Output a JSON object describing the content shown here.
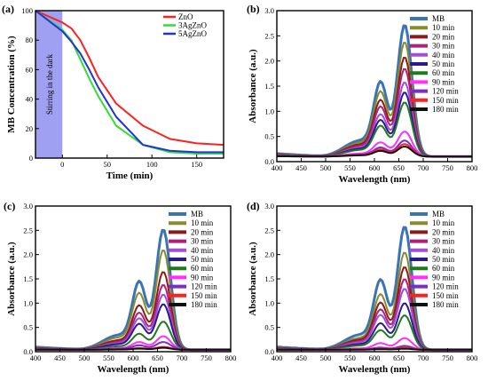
{
  "chart_data": [
    {
      "panel": "(a)",
      "type": "line",
      "xlabel": "Time (min)",
      "ylabel": "MB Concentration (%)",
      "xlim": [
        -30,
        180
      ],
      "ylim": [
        0,
        100
      ],
      "xticks": [
        0,
        50,
        100,
        150
      ],
      "yticks": [
        0,
        20,
        40,
        60,
        80,
        100
      ],
      "annotation": "Stirring in the dark",
      "dark_region": [
        -30,
        0
      ],
      "dark_color": "#8f8ff0",
      "legend_position": "top-right",
      "series": [
        {
          "name": "ZnO",
          "color": "#ff2020",
          "x": [
            -30,
            0,
            10,
            20,
            30,
            40,
            60,
            90,
            120,
            150,
            180
          ],
          "y": [
            100,
            92,
            88,
            80,
            68,
            55,
            37,
            22,
            13,
            10,
            9
          ]
        },
        {
          "name": "3AgZnO",
          "color": "#33dd33",
          "x": [
            -30,
            0,
            10,
            20,
            30,
            40,
            60,
            90,
            120,
            150,
            180
          ],
          "y": [
            100,
            87,
            80,
            67,
            54,
            42,
            22,
            9,
            4,
            3,
            3
          ]
        },
        {
          "name": "5AgZnO",
          "color": "#2233dd",
          "x": [
            -30,
            0,
            10,
            20,
            30,
            40,
            60,
            90,
            120,
            150,
            180
          ],
          "y": [
            100,
            86,
            79,
            71,
            60,
            48,
            28,
            9,
            5,
            4,
            4
          ]
        }
      ]
    },
    {
      "panel": "(b)",
      "type": "line",
      "xlabel": "Wavelength (nm)",
      "ylabel": "Absorbance (a.u.)",
      "xlim": [
        400,
        800
      ],
      "ylim": [
        0,
        3.0
      ],
      "xticks": [
        400,
        450,
        500,
        550,
        600,
        650,
        700,
        750,
        800
      ],
      "yticks": [
        0.0,
        0.5,
        1.0,
        1.5,
        2.0,
        2.5,
        3.0
      ],
      "legend_position": "top-right",
      "base": 0.2,
      "peak_nm": 662,
      "shoulder_nm": 613,
      "series": [
        {
          "name": "MB",
          "color": "#3a74b4",
          "peak": 2.72
        },
        {
          "name": "10 min",
          "color": "#8b8b2a",
          "peak": 2.38
        },
        {
          "name": "20 min",
          "color": "#8b1a1a",
          "peak": 2.08
        },
        {
          "name": "30 min",
          "color": "#b0207a",
          "peak": 1.85
        },
        {
          "name": "40 min",
          "color": "#a050d8",
          "peak": 1.58
        },
        {
          "name": "50 min",
          "color": "#2a1a8a",
          "peak": 1.38
        },
        {
          "name": "60 min",
          "color": "#1f7a1f",
          "peak": 1.18
        },
        {
          "name": "90 min",
          "color": "#ff30ff",
          "peak": 0.6
        },
        {
          "name": "120 min",
          "color": "#7a2ec8",
          "peak": 0.42
        },
        {
          "name": "150 min",
          "color": "#ff2020",
          "peak": 0.35
        },
        {
          "name": "180 min",
          "color": "#101010",
          "peak": 0.3
        }
      ]
    },
    {
      "panel": "(c)",
      "type": "line",
      "xlabel": "Wavelength (nm)",
      "ylabel": "Absorbance (a.u.)",
      "xlim": [
        400,
        800
      ],
      "ylim": [
        0,
        3.0
      ],
      "xticks": [
        400,
        450,
        500,
        550,
        600,
        650,
        700,
        750,
        800
      ],
      "yticks": [
        0.0,
        0.5,
        1.0,
        1.5,
        2.0,
        2.5,
        3.0
      ],
      "legend_position": "top-right",
      "base": 0.08,
      "peak_nm": 662,
      "shoulder_nm": 613,
      "series": [
        {
          "name": "MB",
          "color": "#3a74b4",
          "peak": 2.52
        },
        {
          "name": "10 min",
          "color": "#8b8b2a",
          "peak": 2.1
        },
        {
          "name": "20 min",
          "color": "#8b1a1a",
          "peak": 1.65
        },
        {
          "name": "30 min",
          "color": "#b0207a",
          "peak": 1.38
        },
        {
          "name": "40 min",
          "color": "#a050d8",
          "peak": 1.18
        },
        {
          "name": "50 min",
          "color": "#2a1a8a",
          "peak": 0.98
        },
        {
          "name": "60 min",
          "color": "#1f7a1f",
          "peak": 0.62
        },
        {
          "name": "90 min",
          "color": "#ff30ff",
          "peak": 0.32
        },
        {
          "name": "120 min",
          "color": "#7a2ec8",
          "peak": 0.2
        },
        {
          "name": "150 min",
          "color": "#ff2020",
          "peak": 0.1
        },
        {
          "name": "180 min",
          "color": "#101010",
          "peak": 0.08
        }
      ]
    },
    {
      "panel": "(d)",
      "type": "line",
      "xlabel": "Wavelength (nm)",
      "ylabel": "Absorbance (a.u.)",
      "xlim": [
        400,
        800
      ],
      "ylim": [
        0,
        3.0
      ],
      "xticks": [
        400,
        450,
        500,
        550,
        600,
        650,
        700,
        750,
        800
      ],
      "yticks": [
        0.0,
        0.5,
        1.0,
        1.5,
        2.0,
        2.5,
        3.0
      ],
      "legend_position": "top-right",
      "base": 0.08,
      "peak_nm": 662,
      "shoulder_nm": 613,
      "series": [
        {
          "name": "MB",
          "color": "#3a74b4",
          "peak": 2.58
        },
        {
          "name": "10 min",
          "color": "#8b8b2a",
          "peak": 2.05
        },
        {
          "name": "20 min",
          "color": "#8b1a1a",
          "peak": 1.75
        },
        {
          "name": "30 min",
          "color": "#b0207a",
          "peak": 1.5
        },
        {
          "name": "40 min",
          "color": "#a050d8",
          "peak": 1.3
        },
        {
          "name": "50 min",
          "color": "#2a1a8a",
          "peak": 1.0
        },
        {
          "name": "60 min",
          "color": "#1f7a1f",
          "peak": 0.75
        },
        {
          "name": "90 min",
          "color": "#ff30ff",
          "peak": 0.28
        },
        {
          "name": "120 min",
          "color": "#7a2ec8",
          "peak": 0.12
        },
        {
          "name": "150 min",
          "color": "#ff2020",
          "peak": 0.08
        },
        {
          "name": "180 min",
          "color": "#101010",
          "peak": 0.06
        }
      ]
    }
  ]
}
